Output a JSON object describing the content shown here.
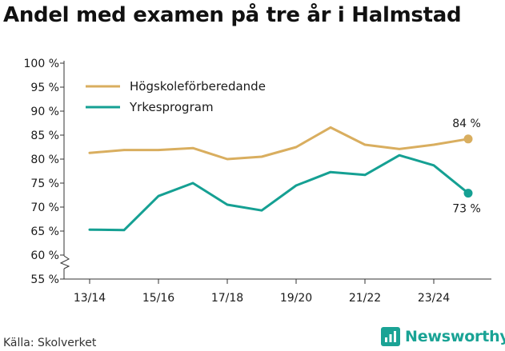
{
  "colors": {
    "series_1": "#d9ae5f",
    "series_2": "#15a093",
    "axis": "#333333",
    "text": "#1a1a1a",
    "brand": "#1aa395"
  },
  "chart_data": {
    "type": "line",
    "title": "Andel med examen på tre år i Halmstad",
    "xlabel": "",
    "ylabel": "",
    "x": [
      "13/14",
      "14/15",
      "15/16",
      "16/17",
      "17/18",
      "18/19",
      "19/20",
      "20/21",
      "21/22",
      "22/23",
      "23/24",
      "24/25"
    ],
    "x_tick_labels": [
      "13/14",
      "15/16",
      "17/18",
      "19/20",
      "21/22",
      "23/24"
    ],
    "y_tick_labels": [
      "55 %",
      "60 %",
      "65 %",
      "70 %",
      "75 %",
      "80 %",
      "85 %",
      "90 %",
      "95 %",
      "100 %"
    ],
    "ylim": [
      55,
      100
    ],
    "y_axis_break": true,
    "grid": false,
    "legend_position": "top-left",
    "series": [
      {
        "name": "Högskoleförberedande",
        "color": "#d9ae5f",
        "values": [
          81.3,
          81.9,
          81.9,
          82.3,
          80.0,
          80.5,
          82.5,
          86.6,
          83.0,
          82.1,
          83.0,
          84.2
        ],
        "end_label": "84 %"
      },
      {
        "name": "Yrkesprogram",
        "color": "#15a093",
        "values": [
          65.3,
          65.2,
          72.3,
          75.0,
          70.5,
          69.3,
          74.5,
          77.3,
          76.7,
          80.8,
          78.7,
          72.9
        ],
        "end_label": "73 %"
      }
    ]
  },
  "footer": {
    "source": "Källa: Skolverket",
    "brand_name": "Newsworthy",
    "brand_icon": "newsworthy-logo-icon"
  }
}
